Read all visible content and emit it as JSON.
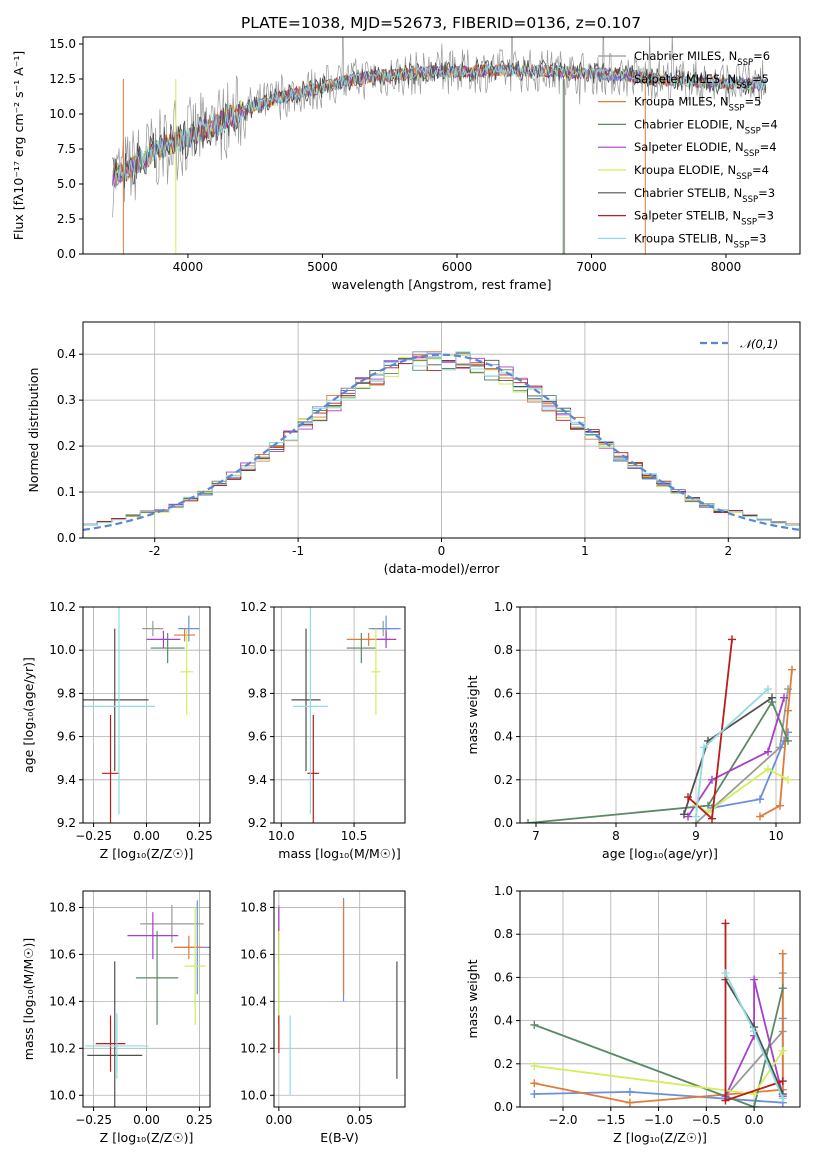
{
  "figure_title": "PLATE=1038, MJD=52673, FIBERID=0136, z=0.107",
  "colors": [
    "#999999",
    "#6a8fdc",
    "#e07b39",
    "#5a8a64",
    "#a63fc9",
    "#cff05a",
    "#505050",
    "#bb1c1c",
    "#8fdde1"
  ],
  "legend_entries": [
    {
      "label": "Chabrier MILES, N",
      "sub": "SSP",
      "suffix": "=6"
    },
    {
      "label": "Salpeter MILES, N",
      "sub": "SSP",
      "suffix": "=5"
    },
    {
      "label": "Kroupa MILES, N",
      "sub": "SSP",
      "suffix": "=5"
    },
    {
      "label": "Chabrier ELODIE, N",
      "sub": "SSP",
      "suffix": "=4"
    },
    {
      "label": "Salpeter ELODIE, N",
      "sub": "SSP",
      "suffix": "=4"
    },
    {
      "label": "Kroupa ELODIE, N",
      "sub": "SSP",
      "suffix": "=4"
    },
    {
      "label": "Chabrier STELIB, N",
      "sub": "SSP",
      "suffix": "=3"
    },
    {
      "label": "Salpeter STELIB, N",
      "sub": "SSP",
      "suffix": "=3"
    },
    {
      "label": "Kroupa STELIB, N",
      "sub": "SSP",
      "suffix": "=3"
    }
  ],
  "chart_data": [
    {
      "id": "spectrum",
      "type": "line",
      "xlabel": "wavelength [Angstrom, rest frame]",
      "ylabel": "Flux [fλ10⁻¹⁷ erg cm⁻² s⁻¹ A⁻¹]",
      "xlim": [
        3220,
        8550
      ],
      "ylim": [
        0,
        15.5
      ],
      "xticks": [
        4000,
        5000,
        6000,
        7000,
        8000
      ],
      "yticks": [
        0,
        2.5,
        5,
        7.5,
        10,
        12.5,
        15
      ],
      "yticklabels": [
        "0.0",
        "2.5",
        "5.0",
        "7.5",
        "10.0",
        "12.5",
        "15.0"
      ],
      "x_range": [
        3440,
        8300
      ],
      "continuum_x": [
        3440,
        3550,
        3700,
        3850,
        4000,
        4200,
        4400,
        4600,
        4800,
        5000,
        5200,
        5400,
        5600,
        5800,
        6000,
        6200,
        6400,
        6600,
        6800,
        7000,
        7200,
        7400,
        7600,
        7800,
        8000,
        8300
      ],
      "continuum_y": [
        5.5,
        6.0,
        7.0,
        7.8,
        8.3,
        9.2,
        10.2,
        10.9,
        11.5,
        11.9,
        12.4,
        12.7,
        12.8,
        13.0,
        13.0,
        13.1,
        13.1,
        13.1,
        13.0,
        12.9,
        12.8,
        12.6,
        12.4,
        12.3,
        12.2,
        12.1
      ],
      "legend_placement": "upper right",
      "grid": false
    },
    {
      "id": "residuals",
      "type": "step",
      "xlabel": "(data-model)/error",
      "ylabel": "Normed distribution",
      "xlim": [
        -2.5,
        2.5
      ],
      "ylim": [
        0,
        0.47
      ],
      "xticks": [
        -2,
        -1,
        0,
        1,
        2
      ],
      "yticks": [
        0,
        0.1,
        0.2,
        0.3,
        0.4
      ],
      "yticklabels": [
        "0.0",
        "0.1",
        "0.2",
        "0.3",
        "0.4"
      ],
      "bin_width": 0.1,
      "reference_curve": {
        "label": "𝒩(0,1)",
        "mean": 0,
        "sigma": 1,
        "color": "#5b86d6"
      },
      "legend_placement": "upper right",
      "grid": true
    },
    {
      "id": "age_vs_Z",
      "type": "errorbar",
      "xlabel": "Z [log₁₀(Z/Z☉)]",
      "ylabel": "age  [log₁₀(age/yr)]",
      "xlim": [
        -0.3,
        0.3
      ],
      "ylim": [
        9.2,
        10.2
      ],
      "xticks": [
        -0.25,
        0,
        0.25
      ],
      "xticklabels": [
        "−0.25",
        "0.00",
        "0.25"
      ],
      "yticks": [
        9.2,
        9.4,
        9.6,
        9.8,
        10.0,
        10.2
      ],
      "points": [
        {
          "x": 0.03,
          "y": 10.1,
          "xerr": 0.05,
          "yerr": 0.035
        },
        {
          "x": 0.2,
          "y": 10.1,
          "xerr": 0.05,
          "yerr": 0.06
        },
        {
          "x": 0.18,
          "y": 10.07,
          "xerr": 0.05,
          "yerr": 0.03
        },
        {
          "x": 0.1,
          "y": 10.01,
          "xerr": 0.08,
          "yerr": 0.07
        },
        {
          "x": 0.08,
          "y": 10.05,
          "xerr": 0.08,
          "yerr": 0.04
        },
        {
          "x": 0.19,
          "y": 9.9,
          "xerr": 0.03,
          "yerr": 0.2
        },
        {
          "x": -0.15,
          "y": 9.77,
          "xerr": 0.16,
          "yerr": 0.33
        },
        {
          "x": -0.17,
          "y": 9.43,
          "xerr": 0.04,
          "yerr": 0.27
        },
        {
          "x": -0.13,
          "y": 9.74,
          "xerr": 0.17,
          "yerr": 0.5
        }
      ],
      "grid": true
    },
    {
      "id": "age_vs_mass",
      "type": "errorbar",
      "xlabel": "mass [log₁₀(M/M☉)]",
      "ylabel": "",
      "xlim": [
        9.95,
        10.85
      ],
      "ylim": [
        9.2,
        10.2
      ],
      "xticks": [
        10.0,
        10.5
      ],
      "xticklabels": [
        "10.0",
        "10.5"
      ],
      "yticks": [
        9.2,
        9.4,
        9.6,
        9.8,
        10.0,
        10.2
      ],
      "points": [
        {
          "x": 10.7,
          "y": 10.1,
          "xerr": 0.1,
          "yerr": 0.035
        },
        {
          "x": 10.72,
          "y": 10.1,
          "xerr": 0.1,
          "yerr": 0.06
        },
        {
          "x": 10.6,
          "y": 10.05,
          "xerr": 0.15,
          "yerr": 0.03
        },
        {
          "x": 10.55,
          "y": 10.01,
          "xerr": 0.1,
          "yerr": 0.07
        },
        {
          "x": 10.72,
          "y": 10.05,
          "xerr": 0.07,
          "yerr": 0.04
        },
        {
          "x": 10.65,
          "y": 9.9,
          "xerr": 0.03,
          "yerr": 0.2
        },
        {
          "x": 10.17,
          "y": 9.77,
          "xerr": 0.1,
          "yerr": 0.33
        },
        {
          "x": 10.22,
          "y": 9.43,
          "xerr": 0.04,
          "yerr": 0.27
        },
        {
          "x": 10.2,
          "y": 9.74,
          "xerr": 0.12,
          "yerr": 0.5
        }
      ],
      "grid": true
    },
    {
      "id": "weight_vs_age",
      "type": "line-markers",
      "xlabel": "age  [log₁₀(age/yr)]",
      "ylabel": "mass weight",
      "xlim": [
        6.8,
        10.3
      ],
      "ylim": [
        0,
        1
      ],
      "xticks": [
        7,
        8,
        9,
        10
      ],
      "yticks": [
        0,
        0.2,
        0.4,
        0.6,
        0.8,
        1.0
      ],
      "yticklabels": [
        "0.0",
        "0.2",
        "0.4",
        "0.6",
        "0.8",
        "1.0"
      ],
      "series": [
        {
          "x": [
            9.0,
            10.05,
            10.15
          ],
          "y": [
            0.0,
            0.35,
            0.62
          ]
        },
        {
          "x": [
            9.2,
            9.8,
            10.1,
            10.15
          ],
          "y": [
            0.07,
            0.11,
            0.38,
            0.42
          ]
        },
        {
          "x": [
            9.8,
            10.05,
            10.15,
            10.2
          ],
          "y": [
            0.03,
            0.08,
            0.52,
            0.71
          ]
        },
        {
          "x": [
            6.9,
            9.15,
            9.95,
            10.15
          ],
          "y": [
            0.0,
            0.08,
            0.56,
            0.38
          ]
        },
        {
          "x": [
            8.9,
            9.2,
            9.9,
            10.1
          ],
          "y": [
            0.03,
            0.2,
            0.33,
            0.58
          ]
        },
        {
          "x": [
            9.0,
            9.15,
            9.9,
            10.15
          ],
          "y": [
            0.08,
            0.05,
            0.25,
            0.2
          ]
        },
        {
          "x": [
            8.85,
            9.15,
            9.95
          ],
          "y": [
            0.04,
            0.38,
            0.58
          ]
        },
        {
          "x": [
            8.9,
            9.2,
            9.45
          ],
          "y": [
            0.12,
            0.02,
            0.85
          ]
        },
        {
          "x": [
            9.0,
            9.1,
            9.9
          ],
          "y": [
            0.03,
            0.35,
            0.62
          ]
        }
      ],
      "grid": true
    },
    {
      "id": "mass_vs_Z",
      "type": "errorbar",
      "xlabel": "Z [log₁₀(Z/Z☉)]",
      "ylabel": "mass [log₁₀(M/M☉)]",
      "xlim": [
        -0.3,
        0.3
      ],
      "ylim": [
        9.95,
        10.87
      ],
      "xticks": [
        -0.25,
        0,
        0.25
      ],
      "xticklabels": [
        "−0.25",
        "0.00",
        "0.25"
      ],
      "yticks": [
        10.0,
        10.2,
        10.4,
        10.6,
        10.8
      ],
      "points": [
        {
          "x": 0.12,
          "y": 10.73,
          "xerr": 0.15,
          "yerr": 0.08
        },
        {
          "x": 0.24,
          "y": 10.63,
          "xerr": 0.1,
          "yerr": 0.2
        },
        {
          "x": 0.2,
          "y": 10.63,
          "xerr": 0.07,
          "yerr": 0.05
        },
        {
          "x": 0.05,
          "y": 10.5,
          "xerr": 0.1,
          "yerr": 0.2
        },
        {
          "x": 0.03,
          "y": 10.68,
          "xerr": 0.12,
          "yerr": 0.1
        },
        {
          "x": 0.23,
          "y": 10.55,
          "xerr": 0.05,
          "yerr": 0.25
        },
        {
          "x": -0.15,
          "y": 10.17,
          "xerr": 0.13,
          "yerr": 0.4
        },
        {
          "x": -0.17,
          "y": 10.22,
          "xerr": 0.07,
          "yerr": 0.12
        },
        {
          "x": -0.14,
          "y": 10.21,
          "xerr": 0.15,
          "yerr": 0.14
        }
      ],
      "grid": true
    },
    {
      "id": "mass_vs_EBV",
      "type": "errorbar",
      "xlabel": "E(B-V)",
      "ylabel": "",
      "xlim": [
        -0.003,
        0.078
      ],
      "ylim": [
        9.95,
        10.87
      ],
      "xticks": [
        0,
        0.05
      ],
      "xticklabels": [
        "0.00",
        "0.05"
      ],
      "yticks": [
        10.0,
        10.2,
        10.4,
        10.6,
        10.8
      ],
      "points": [
        {
          "x": 0.0,
          "y": 10.73,
          "xerr": 0.0,
          "yerr": 0.08
        },
        {
          "x": 0.04,
          "y": 10.62,
          "xerr": 0.0,
          "yerr": 0.22
        },
        {
          "x": 0.04,
          "y": 10.63,
          "xerr": 0.0,
          "yerr": 0.2
        },
        {
          "x": 0.0,
          "y": 10.5,
          "xerr": 0.0,
          "yerr": 0.2
        },
        {
          "x": 0.0,
          "y": 10.68,
          "xerr": 0.0,
          "yerr": 0.12
        },
        {
          "x": 0.0,
          "y": 10.45,
          "xerr": 0.0,
          "yerr": 0.25
        },
        {
          "x": 0.073,
          "y": 10.32,
          "xerr": 0.0,
          "yerr": 0.25
        },
        {
          "x": 0.0,
          "y": 10.26,
          "xerr": 0.0,
          "yerr": 0.08
        },
        {
          "x": 0.007,
          "y": 10.17,
          "xerr": 0.0,
          "yerr": 0.17
        }
      ],
      "grid": true
    },
    {
      "id": "weight_vs_Z",
      "type": "line-markers",
      "xlabel": "Z [log₁₀(Z/Z☉)]",
      "ylabel": "mass weight",
      "xlim": [
        -2.45,
        0.48
      ],
      "ylim": [
        0,
        1
      ],
      "xticks": [
        -2.0,
        -1.5,
        -1.0,
        -0.5,
        0.0
      ],
      "xticklabels": [
        "−2.0",
        "−1.5",
        "−1.0",
        "−0.5",
        "0.0"
      ],
      "yticks": [
        0,
        0.2,
        0.4,
        0.6,
        0.8,
        1.0
      ],
      "yticklabels": [
        "0.0",
        "0.2",
        "0.4",
        "0.6",
        "0.8",
        "1.0"
      ],
      "series": [
        {
          "x": [
            -0.3,
            0.3,
            0.3
          ],
          "y": [
            0.05,
            0.35,
            0.62
          ]
        },
        {
          "x": [
            -2.3,
            -1.3,
            0.3,
            0.3
          ],
          "y": [
            0.06,
            0.07,
            0.02,
            0.41
          ]
        },
        {
          "x": [
            -2.3,
            -1.3,
            0.3,
            0.3
          ],
          "y": [
            0.11,
            0.02,
            0.08,
            0.71
          ]
        },
        {
          "x": [
            -2.3,
            0.0,
            0.3
          ],
          "y": [
            0.38,
            0.0,
            0.55
          ]
        },
        {
          "x": [
            -0.3,
            0.0,
            0.0,
            0.3
          ],
          "y": [
            0.05,
            0.33,
            0.59,
            0.05
          ]
        },
        {
          "x": [
            -2.3,
            0.0,
            0.3
          ],
          "y": [
            0.19,
            0.06,
            0.26
          ]
        },
        {
          "x": [
            -0.3,
            0.0,
            0.3
          ],
          "y": [
            0.59,
            0.37,
            0.06
          ]
        },
        {
          "x": [
            -0.3,
            -0.3,
            0.3
          ],
          "y": [
            0.85,
            0.03,
            0.12
          ]
        },
        {
          "x": [
            -0.3,
            0.0,
            0.3
          ],
          "y": [
            0.62,
            0.35,
            0.04
          ]
        }
      ],
      "grid": true
    }
  ]
}
